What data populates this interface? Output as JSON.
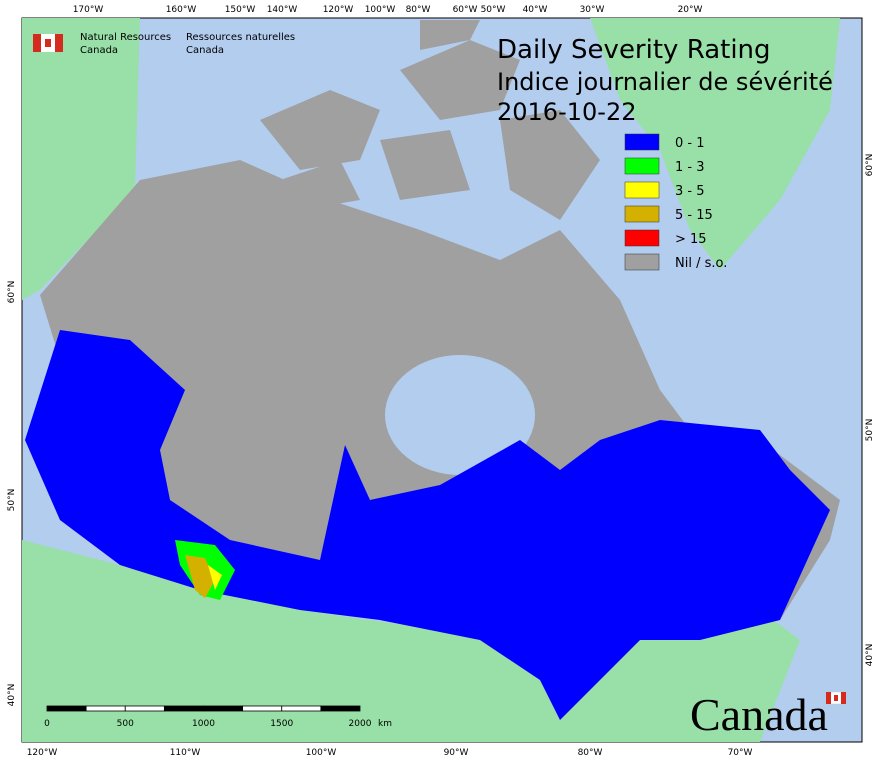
{
  "header": {
    "agency_en": [
      "Natural Resources",
      "Canada"
    ],
    "agency_fr": [
      "Ressources naturelles",
      "Canada"
    ]
  },
  "title": [
    "Daily Severity Rating",
    "Indice journalier de sévérité",
    "2016-10-22"
  ],
  "legend": [
    {
      "label": "0 - 1",
      "color": "#0000ff"
    },
    {
      "label": "1 - 3",
      "color": "#00ff00"
    },
    {
      "label": "3 - 5",
      "color": "#ffff00"
    },
    {
      "label": "5 - 15",
      "color": "#d4b000"
    },
    {
      "label": "> 15",
      "color": "#ff0000"
    },
    {
      "label": "Nil / s.o.",
      "color": "#a0a0a0"
    }
  ],
  "graticule": {
    "top": [
      "170°W",
      "160°W",
      "150°W",
      "140°W",
      "120°W",
      "100°W",
      "80°W",
      "60°W",
      "50°W",
      "40°W",
      "30°W",
      "20°W"
    ],
    "bottom": [
      "120°W",
      "110°W",
      "100°W",
      "90°W",
      "80°W",
      "70°W"
    ],
    "left": [
      "60°N",
      "50°N",
      "40°N"
    ],
    "right": [
      "60°N",
      "50°N",
      "40°N"
    ]
  },
  "scale": {
    "labels": [
      "0",
      "500",
      "1000",
      "1500",
      "2000"
    ],
    "unit": "km"
  },
  "wordmark": "Canada"
}
